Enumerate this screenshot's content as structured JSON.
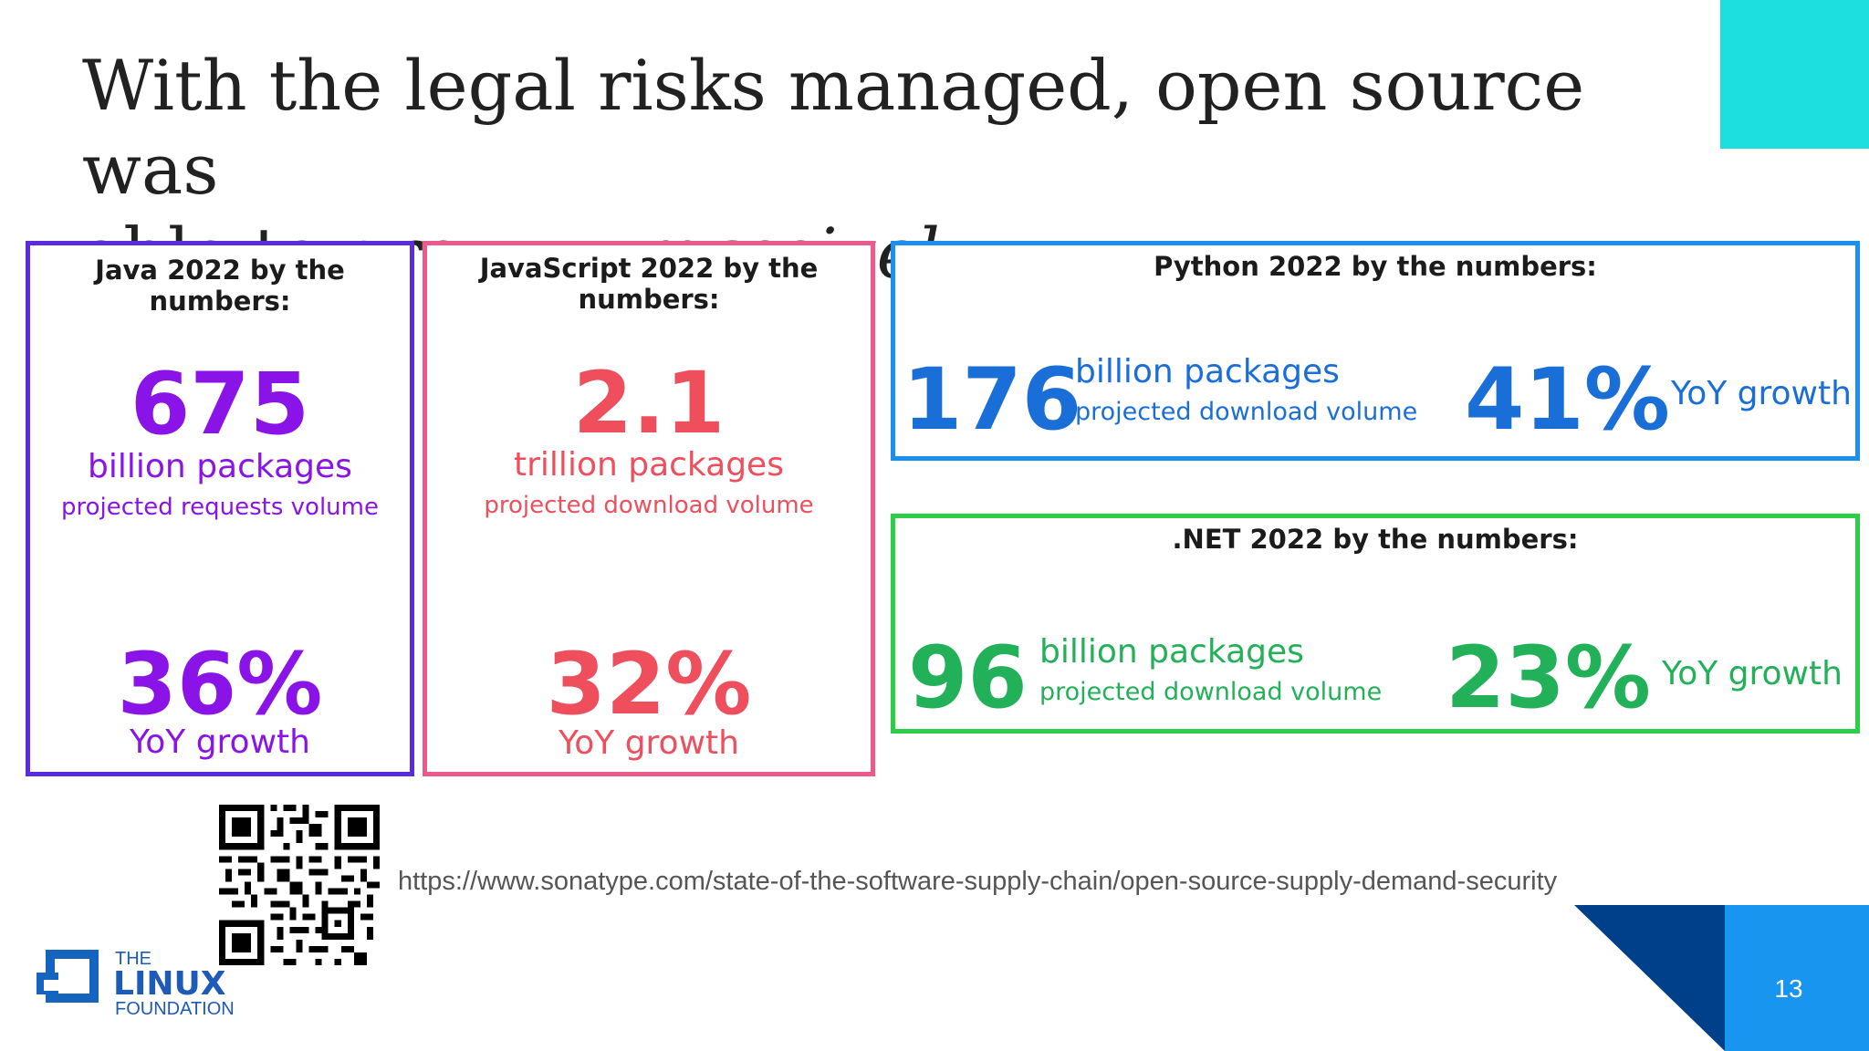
{
  "slide": {
    "title_line1": "With the legal risks managed, open source was",
    "title_line2": "able to grow …",
    "title_emphasis": "massively",
    "page_number": "13",
    "colors": {
      "accent_cyan": "#1edfe0",
      "accent_blue": "#1895ee",
      "accent_navy": "#003f8a"
    }
  },
  "cards": {
    "java": {
      "heading": "Java 2022 by the numbers:",
      "number": "675",
      "unit": "billion packages",
      "sub": "projected requests volume",
      "growth": "36%",
      "growth_label": "YoY growth",
      "color": "#8a14e8"
    },
    "javascript": {
      "heading": "JavaScript 2022 by the numbers:",
      "number": "2.1",
      "unit": "trillion packages",
      "sub": "projected download volume",
      "growth": "32%",
      "growth_label": "YoY growth",
      "color": "#ef4e5d"
    },
    "python": {
      "heading": "Python 2022 by the numbers:",
      "number": "176",
      "unit": "billion packages",
      "sub": "projected download volume",
      "growth": "41%",
      "growth_label": "YoY growth",
      "color": "#1a6ed8"
    },
    "dotnet": {
      "heading": ".NET 2022 by the numbers:",
      "number": "96",
      "unit": "billion packages",
      "sub": "projected download volume",
      "growth": "23%",
      "growth_label": "YoY growth",
      "color": "#22b158"
    }
  },
  "source": {
    "url": "https://www.sonatype.com/state-of-the-software-supply-chain/open-source-supply-demand-security"
  },
  "logo": {
    "line1": "THE",
    "line2": "LINUX",
    "line3": "FOUNDATION"
  }
}
